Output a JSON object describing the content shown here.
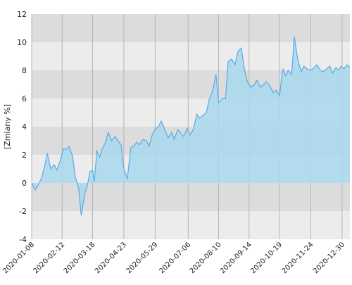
{
  "chart_data": {
    "type": "area",
    "title": "",
    "xlabel": "",
    "ylabel": "[Zmiany %]",
    "ylim": [
      -4,
      12
    ],
    "yticks": [
      -4,
      -2,
      0,
      2,
      4,
      6,
      8,
      10,
      12
    ],
    "ytick_labels": [
      "-4",
      "-2",
      "0",
      "2",
      "4",
      "6",
      "8",
      "10",
      "12"
    ],
    "xlim": [
      "2020-01-08",
      "2021-01-08"
    ],
    "xticks": [
      "2020-01-08",
      "2020-02-12",
      "2020-03-18",
      "2020-04-23",
      "2020-05-29",
      "2020-07-06",
      "2020-08-10",
      "2020-09-14",
      "2020-10-19",
      "2020-11-24",
      "2020-12-30"
    ],
    "xtick_labels": [
      "2020-01-08",
      "2020-02-12",
      "2020-03-18",
      "2020-04-23",
      "2020-05-29",
      "2020-07-06",
      "2020-08-10",
      "2020-09-14",
      "2020-10-19",
      "2020-11-24",
      "2020-12-30"
    ],
    "grid": true,
    "legend": "none",
    "colors": {
      "line": "#5aaae6",
      "fill": "#a8d8ee",
      "band_dark": "#dcdcdc",
      "band_light": "#ececec",
      "grid": "#b4b4b4",
      "axis": "#444444"
    },
    "series": [
      {
        "x": [
          "2020-01-08",
          "2020-01-12",
          "2020-01-15",
          "2020-01-19",
          "2020-01-23",
          "2020-01-26",
          "2020-01-30",
          "2020-02-03",
          "2020-02-06",
          "2020-02-10",
          "2020-02-13",
          "2020-02-17",
          "2020-02-20",
          "2020-02-24",
          "2020-02-27",
          "2020-03-02",
          "2020-03-05",
          "2020-03-09",
          "2020-03-12",
          "2020-03-15",
          "2020-03-18",
          "2020-03-20",
          "2020-03-23",
          "2020-03-26",
          "2020-03-29",
          "2020-04-02",
          "2020-04-05",
          "2020-04-09",
          "2020-04-13",
          "2020-04-16",
          "2020-04-20",
          "2020-04-23",
          "2020-04-27",
          "2020-05-01",
          "2020-05-04",
          "2020-05-08",
          "2020-05-11",
          "2020-05-15",
          "2020-05-19",
          "2020-05-22",
          "2020-05-26",
          "2020-05-29",
          "2020-06-02",
          "2020-06-05",
          "2020-06-09",
          "2020-06-13",
          "2020-06-17",
          "2020-06-20",
          "2020-06-24",
          "2020-06-28",
          "2020-07-01",
          "2020-07-05",
          "2020-07-08",
          "2020-07-12",
          "2020-07-16",
          "2020-07-19",
          "2020-07-23",
          "2020-07-27",
          "2020-07-30",
          "2020-08-03",
          "2020-08-07",
          "2020-08-10",
          "2020-08-14",
          "2020-08-18",
          "2020-08-21",
          "2020-08-25",
          "2020-08-29",
          "2020-09-01",
          "2020-09-05",
          "2020-09-09",
          "2020-09-12",
          "2020-09-16",
          "2020-09-20",
          "2020-09-23",
          "2020-09-27",
          "2020-10-01",
          "2020-10-04",
          "2020-10-08",
          "2020-10-12",
          "2020-10-15",
          "2020-10-19",
          "2020-10-23",
          "2020-10-26",
          "2020-10-29",
          "2020-11-02",
          "2020-11-05",
          "2020-11-09",
          "2020-11-13",
          "2020-11-16",
          "2020-11-20",
          "2020-11-24",
          "2020-11-28",
          "2020-12-01",
          "2020-12-05",
          "2020-12-08",
          "2020-12-12",
          "2020-12-16",
          "2020-12-19",
          "2020-12-23",
          "2020-12-26",
          "2020-12-29",
          "2021-01-01",
          "2021-01-02",
          "2021-01-05",
          "2021-01-08"
        ],
        "values": [
          0.0,
          -0.5,
          -0.2,
          0.3,
          1.2,
          2.1,
          1.0,
          1.3,
          0.9,
          1.6,
          2.4,
          2.4,
          2.6,
          1.9,
          0.5,
          -0.4,
          -2.3,
          -0.8,
          -0.2,
          0.8,
          0.9,
          0.1,
          2.3,
          1.8,
          2.4,
          2.9,
          3.6,
          3.0,
          3.3,
          3.0,
          2.7,
          1.0,
          0.3,
          2.5,
          2.6,
          2.9,
          2.7,
          3.1,
          3.0,
          2.6,
          3.5,
          3.8,
          4.0,
          4.4,
          3.8,
          3.2,
          3.6,
          3.1,
          3.8,
          3.5,
          3.3,
          3.9,
          3.4,
          3.8,
          4.9,
          4.6,
          4.8,
          5.0,
          5.9,
          6.5,
          7.7,
          5.7,
          6.0,
          6.0,
          8.6,
          8.8,
          8.4,
          9.3,
          9.6,
          8.0,
          7.2,
          6.8,
          7.0,
          7.3,
          6.8,
          7.0,
          7.2,
          6.9,
          6.4,
          6.6,
          6.2,
          8.1,
          7.6,
          8.0,
          7.7,
          10.4,
          8.8,
          7.9,
          8.3,
          8.1,
          8.0,
          8.2,
          8.4,
          8.0,
          7.9,
          8.1,
          8.3,
          7.8,
          8.2,
          8.0,
          8.3,
          8.1,
          8.2,
          8.4,
          8.2
        ]
      }
    ]
  }
}
